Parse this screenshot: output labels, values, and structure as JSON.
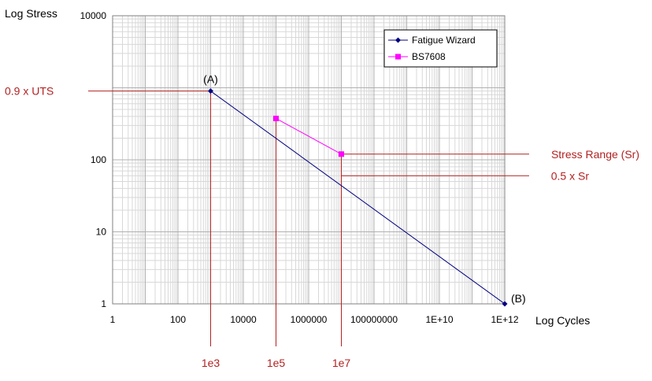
{
  "chart_data": {
    "type": "line",
    "title": "",
    "xlabel": "Log Cycles",
    "ylabel": "Log Stress",
    "x_scale": "log",
    "y_scale": "log",
    "xlim": [
      1,
      1000000000000
    ],
    "ylim": [
      1,
      10000
    ],
    "x_ticks": [
      "1",
      "100",
      "10000",
      "1000000",
      "100000000",
      "1E+10",
      "1E+12"
    ],
    "y_ticks": [
      "1",
      "10",
      "100",
      "10000"
    ],
    "grid": true,
    "legend_position": "top-right",
    "series": [
      {
        "name": "Fatigue Wizard",
        "color": "#000080",
        "marker": "diamond",
        "x": [
          1000,
          1000000000000
        ],
        "y": [
          900,
          1
        ],
        "point_labels": [
          "(A)",
          "(B)"
        ]
      },
      {
        "name": "BS7608",
        "color": "#ff00ff",
        "marker": "square",
        "x": [
          100000,
          10000000
        ],
        "y": [
          375,
          120
        ]
      }
    ],
    "annotations": {
      "color": "#b22222",
      "horizontal": [
        {
          "text": "0.9 x UTS",
          "y": 900
        },
        {
          "text": "Stress Range (Sr)",
          "y": 120
        },
        {
          "text": "0.5 x Sr",
          "y": 60
        }
      ],
      "vertical": [
        {
          "text": "1e3",
          "x": 1000
        },
        {
          "text": "1e5",
          "x": 100000
        },
        {
          "text": "1e7",
          "x": 10000000
        }
      ]
    }
  }
}
